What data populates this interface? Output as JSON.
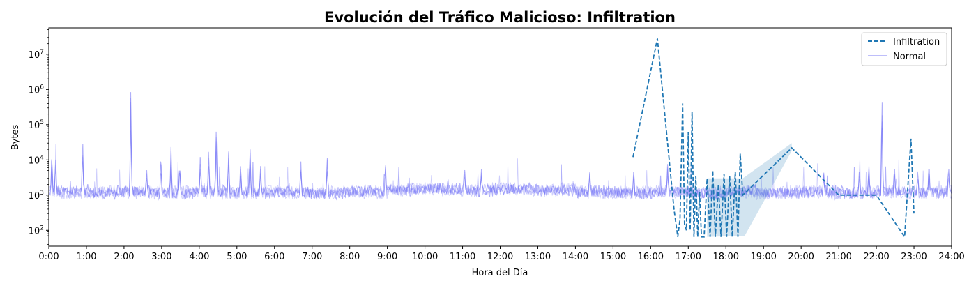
{
  "chart_data": {
    "type": "line",
    "title": "Evolución del Tráfico Malicioso: Infiltration",
    "xlabel": "Hora del Día",
    "ylabel": "Bytes",
    "xlim": [
      0,
      24
    ],
    "ylim_log10": [
      1.55,
      7.75
    ],
    "yscale": "log",
    "x_ticks": [
      "0:00",
      "1:00",
      "2:00",
      "3:00",
      "4:00",
      "5:00",
      "6:00",
      "7:00",
      "8:00",
      "9:00",
      "10:00",
      "11:00",
      "12:00",
      "13:00",
      "14:00",
      "15:00",
      "16:00",
      "17:00",
      "18:00",
      "19:00",
      "20:00",
      "21:00",
      "22:00",
      "23:00",
      "24:00"
    ],
    "y_ticks": [
      {
        "value": 100,
        "base": "10",
        "exp": "2"
      },
      {
        "value": 1000,
        "base": "10",
        "exp": "3"
      },
      {
        "value": 10000,
        "base": "10",
        "exp": "4"
      },
      {
        "value": 100000,
        "base": "10",
        "exp": "5"
      },
      {
        "value": 1000000,
        "base": "10",
        "exp": "6"
      },
      {
        "value": 10000000,
        "base": "10",
        "exp": "7"
      }
    ],
    "grid": false,
    "legend_position": "top-right",
    "series": [
      {
        "name": "Infiltration",
        "style": "dashed",
        "color": "#1f77b4",
        "x": [
          15.53,
          16.18,
          16.62,
          16.72,
          16.78,
          16.85,
          16.9,
          16.95,
          17.0,
          17.05,
          17.1,
          17.15,
          17.2,
          17.25,
          17.3,
          17.35,
          17.42,
          17.5,
          17.58,
          17.65,
          17.72,
          17.8,
          17.87,
          17.95,
          18.02,
          18.1,
          18.17,
          18.25,
          18.32,
          18.38,
          18.45,
          19.75,
          21.0,
          22.0,
          22.75,
          22.92,
          23.0
        ],
        "y": [
          12000,
          28000000,
          400,
          65,
          200,
          400000,
          150,
          100,
          60000,
          100,
          230000,
          65,
          3500,
          65,
          1200,
          65,
          65,
          3000,
          65,
          5000,
          65,
          2000,
          65,
          4000,
          65,
          3500,
          65,
          4500,
          65,
          15000,
          1000,
          22000,
          1000,
          1000,
          65,
          40000,
          300
        ]
      },
      {
        "name": "Normal",
        "style": "solid",
        "color": "#6f6ff5",
        "baseline_bytes": 1200,
        "spikes": [
          {
            "x": 0.08,
            "y": 18000
          },
          {
            "x": 0.18,
            "y": 15000
          },
          {
            "x": 0.9,
            "y": 50000
          },
          {
            "x": 2.18,
            "y": 1200000
          },
          {
            "x": 2.6,
            "y": 6000
          },
          {
            "x": 2.98,
            "y": 18000
          },
          {
            "x": 3.25,
            "y": 25000
          },
          {
            "x": 3.48,
            "y": 9000
          },
          {
            "x": 4.03,
            "y": 20000
          },
          {
            "x": 4.25,
            "y": 25000
          },
          {
            "x": 4.45,
            "y": 70000
          },
          {
            "x": 4.78,
            "y": 20000
          },
          {
            "x": 5.1,
            "y": 9000
          },
          {
            "x": 5.35,
            "y": 30000
          },
          {
            "x": 5.63,
            "y": 7000
          },
          {
            "x": 6.7,
            "y": 10000
          },
          {
            "x": 7.4,
            "y": 15000
          },
          {
            "x": 8.95,
            "y": 9000
          },
          {
            "x": 11.05,
            "y": 9000
          },
          {
            "x": 11.5,
            "y": 6000
          },
          {
            "x": 14.38,
            "y": 5000
          },
          {
            "x": 15.55,
            "y": 6000
          },
          {
            "x": 16.45,
            "y": 8000
          },
          {
            "x": 20.6,
            "y": 5000
          },
          {
            "x": 21.55,
            "y": 6000
          },
          {
            "x": 21.8,
            "y": 8000
          },
          {
            "x": 22.15,
            "y": 1000000
          },
          {
            "x": 22.48,
            "y": 8000
          },
          {
            "x": 23.1,
            "y": 6000
          },
          {
            "x": 23.4,
            "y": 10000
          },
          {
            "x": 23.92,
            "y": 8000
          }
        ]
      }
    ]
  }
}
